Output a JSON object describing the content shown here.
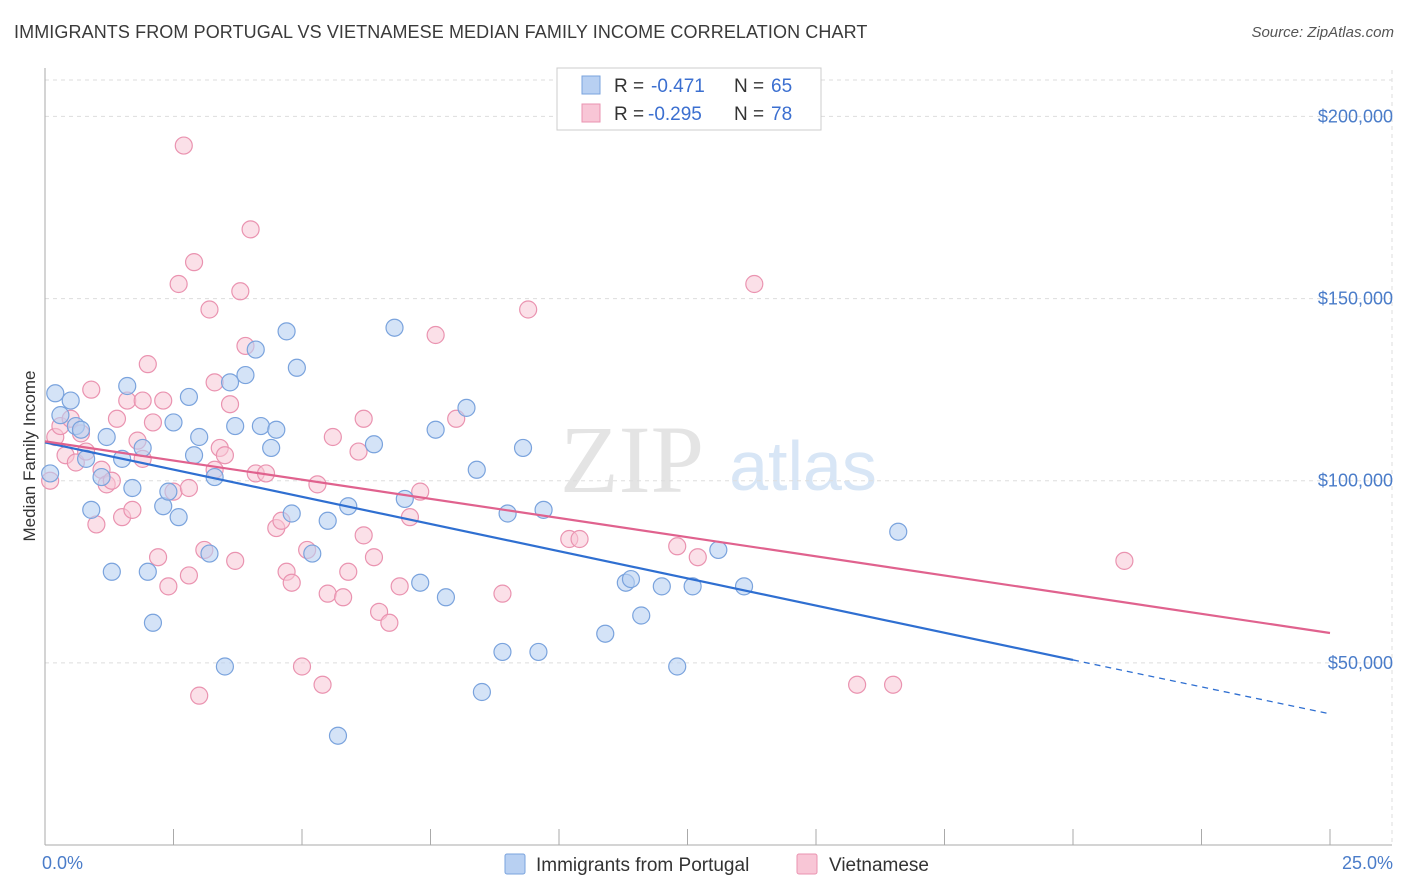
{
  "header": {
    "title": "IMMIGRANTS FROM PORTUGAL VS VIETNAMESE MEDIAN FAMILY INCOME CORRELATION CHART",
    "source": "Source: ZipAtlas.com"
  },
  "watermark": {
    "zip": "ZIP",
    "atlas": "atlas"
  },
  "colors": {
    "blue_fill": "#b8d0f2",
    "blue_stroke": "#7aa3dd",
    "blue_line": "#2f6fd1",
    "pink_fill": "#f8c6d6",
    "pink_stroke": "#ea93b0",
    "pink_line": "#e0628e",
    "tick_text": "#4a7cc9",
    "grid": "#dddddd"
  },
  "chart_data": {
    "type": "scatter",
    "title": "IMMIGRANTS FROM PORTUGAL VS VIETNAMESE MEDIAN FAMILY INCOME CORRELATION CHART",
    "xlabel": "",
    "ylabel": "Median Family Income",
    "xlim": [
      0,
      25
    ],
    "ylim": [
      0,
      210000
    ],
    "x_tick_labels": [
      "0.0%",
      "25.0%"
    ],
    "y_ticks": [
      50000,
      100000,
      150000,
      200000
    ],
    "y_tick_labels": [
      "$50,000",
      "$100,000",
      "$150,000",
      "$200,000"
    ],
    "legend": [
      {
        "r_label": "R =",
        "r_value": "-0.471",
        "n_label": "N =",
        "n_value": "65"
      },
      {
        "r_label": "R =",
        "r_value": "-0.295",
        "n_label": "N =",
        "n_value": "78"
      }
    ],
    "series": [
      {
        "name": "Immigrants from Portugal",
        "trend": {
          "x0": 0,
          "y0": 110500,
          "x1": 20.0,
          "y1": 50800,
          "dash_x1": 25.0,
          "dash_y1": 36000
        },
        "points": [
          [
            0.1,
            102000
          ],
          [
            0.2,
            124000
          ],
          [
            0.3,
            118000
          ],
          [
            0.5,
            122000
          ],
          [
            0.6,
            115000
          ],
          [
            0.7,
            114000
          ],
          [
            0.8,
            106000
          ],
          [
            0.9,
            92000
          ],
          [
            1.1,
            101000
          ],
          [
            1.2,
            112000
          ],
          [
            1.3,
            75000
          ],
          [
            1.5,
            106000
          ],
          [
            1.6,
            126000
          ],
          [
            1.7,
            98000
          ],
          [
            1.9,
            109000
          ],
          [
            2.0,
            75000
          ],
          [
            2.1,
            61000
          ],
          [
            2.3,
            93000
          ],
          [
            2.4,
            97000
          ],
          [
            2.5,
            116000
          ],
          [
            2.6,
            90000
          ],
          [
            2.8,
            123000
          ],
          [
            2.9,
            107000
          ],
          [
            3.0,
            112000
          ],
          [
            3.2,
            80000
          ],
          [
            3.3,
            101000
          ],
          [
            3.5,
            49000
          ],
          [
            3.6,
            127000
          ],
          [
            3.7,
            115000
          ],
          [
            3.9,
            129000
          ],
          [
            4.1,
            136000
          ],
          [
            4.2,
            115000
          ],
          [
            4.4,
            109000
          ],
          [
            4.5,
            114000
          ],
          [
            4.7,
            141000
          ],
          [
            4.8,
            91000
          ],
          [
            4.9,
            131000
          ],
          [
            5.2,
            80000
          ],
          [
            5.5,
            89000
          ],
          [
            5.7,
            30000
          ],
          [
            5.9,
            93000
          ],
          [
            6.4,
            110000
          ],
          [
            6.8,
            142000
          ],
          [
            7.0,
            95000
          ],
          [
            7.3,
            72000
          ],
          [
            7.6,
            114000
          ],
          [
            7.8,
            68000
          ],
          [
            8.2,
            120000
          ],
          [
            8.4,
            103000
          ],
          [
            8.5,
            42000
          ],
          [
            8.9,
            53000
          ],
          [
            9.0,
            91000
          ],
          [
            9.3,
            109000
          ],
          [
            9.6,
            53000
          ],
          [
            9.7,
            92000
          ],
          [
            10.9,
            58000
          ],
          [
            11.3,
            72000
          ],
          [
            11.6,
            63000
          ],
          [
            12.0,
            71000
          ],
          [
            12.3,
            49000
          ],
          [
            12.6,
            71000
          ],
          [
            13.1,
            81000
          ],
          [
            13.6,
            71000
          ],
          [
            16.6,
            86000
          ],
          [
            11.4,
            73000
          ]
        ]
      },
      {
        "name": "Vietnamese",
        "trend": {
          "x0": 0,
          "y0": 110800,
          "x1": 25.0,
          "y1": 58200
        },
        "points": [
          [
            0.1,
            100000
          ],
          [
            0.2,
            112000
          ],
          [
            0.3,
            115000
          ],
          [
            0.4,
            107000
          ],
          [
            0.5,
            117000
          ],
          [
            0.6,
            105000
          ],
          [
            0.7,
            113000
          ],
          [
            0.8,
            108000
          ],
          [
            0.9,
            125000
          ],
          [
            1.0,
            88000
          ],
          [
            1.1,
            103000
          ],
          [
            1.2,
            99000
          ],
          [
            1.3,
            100000
          ],
          [
            1.4,
            117000
          ],
          [
            1.5,
            90000
          ],
          [
            1.6,
            122000
          ],
          [
            1.7,
            92000
          ],
          [
            1.8,
            111000
          ],
          [
            1.9,
            106000
          ],
          [
            2.0,
            132000
          ],
          [
            2.1,
            116000
          ],
          [
            2.2,
            79000
          ],
          [
            2.3,
            122000
          ],
          [
            2.4,
            71000
          ],
          [
            2.5,
            97000
          ],
          [
            2.6,
            154000
          ],
          [
            2.7,
            192000
          ],
          [
            2.8,
            74000
          ],
          [
            2.9,
            160000
          ],
          [
            3.0,
            41000
          ],
          [
            3.1,
            81000
          ],
          [
            3.2,
            147000
          ],
          [
            3.3,
            127000
          ],
          [
            3.4,
            109000
          ],
          [
            3.5,
            107000
          ],
          [
            3.6,
            121000
          ],
          [
            3.7,
            78000
          ],
          [
            3.8,
            152000
          ],
          [
            3.9,
            137000
          ],
          [
            4.0,
            169000
          ],
          [
            4.1,
            102000
          ],
          [
            4.3,
            102000
          ],
          [
            4.5,
            87000
          ],
          [
            4.7,
            75000
          ],
          [
            4.8,
            72000
          ],
          [
            5.0,
            49000
          ],
          [
            5.1,
            81000
          ],
          [
            5.3,
            99000
          ],
          [
            5.4,
            44000
          ],
          [
            5.5,
            69000
          ],
          [
            5.6,
            112000
          ],
          [
            5.8,
            68000
          ],
          [
            6.1,
            108000
          ],
          [
            6.2,
            117000
          ],
          [
            6.4,
            79000
          ],
          [
            6.5,
            64000
          ],
          [
            6.7,
            61000
          ],
          [
            6.9,
            71000
          ],
          [
            7.1,
            90000
          ],
          [
            7.3,
            97000
          ],
          [
            7.6,
            140000
          ],
          [
            8.0,
            117000
          ],
          [
            8.9,
            69000
          ],
          [
            9.4,
            147000
          ],
          [
            10.2,
            84000
          ],
          [
            10.4,
            84000
          ],
          [
            12.3,
            82000
          ],
          [
            12.7,
            79000
          ],
          [
            13.8,
            154000
          ],
          [
            15.8,
            44000
          ],
          [
            16.5,
            44000
          ],
          [
            21.0,
            78000
          ],
          [
            4.6,
            89000
          ],
          [
            5.9,
            75000
          ],
          [
            3.3,
            103000
          ],
          [
            6.2,
            85000
          ],
          [
            2.8,
            98000
          ],
          [
            1.9,
            122000
          ]
        ]
      }
    ]
  },
  "bottom_legend": {
    "items": [
      {
        "label": "Immigrants from Portugal"
      },
      {
        "label": "Vietnamese"
      }
    ]
  }
}
